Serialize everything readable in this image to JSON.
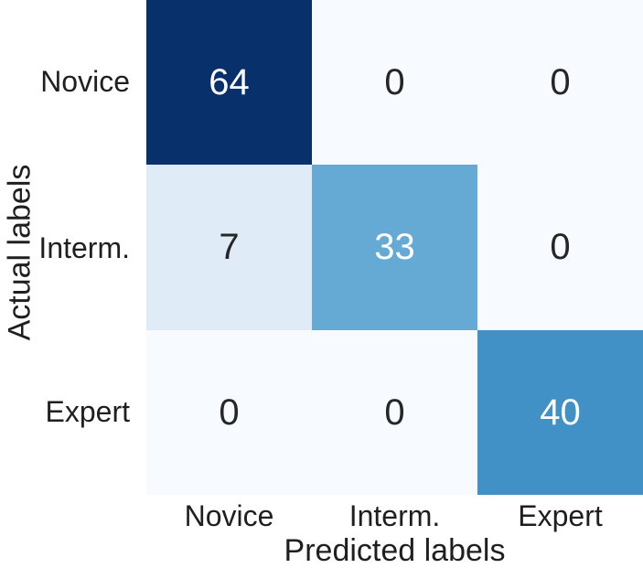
{
  "figure": {
    "background": "#ffffff",
    "text_color": "#1f1f1f"
  },
  "chart_data": {
    "type": "heatmap",
    "title": "",
    "xlabel": "Predicted labels",
    "ylabel": "Actual labels",
    "x_categories": [
      "Novice",
      "Interm.",
      "Expert"
    ],
    "y_categories": [
      "Novice",
      "Interm.",
      "Expert"
    ],
    "values": [
      [
        64,
        0,
        0
      ],
      [
        7,
        33,
        0
      ],
      [
        0,
        0,
        40
      ]
    ],
    "colormap": "Blues",
    "vmin": 0,
    "vmax": 64,
    "grid": false,
    "legend": "none",
    "cells": [
      {
        "row": "Novice",
        "col": "Novice",
        "value": "64",
        "bg": "#08306b",
        "fg": "#ffffff"
      },
      {
        "row": "Novice",
        "col": "Interm.",
        "value": "0",
        "bg": "#f7fbff",
        "fg": "#262626"
      },
      {
        "row": "Novice",
        "col": "Expert",
        "value": "0",
        "bg": "#f7fbff",
        "fg": "#262626"
      },
      {
        "row": "Interm.",
        "col": "Novice",
        "value": "7",
        "bg": "#dfebf7",
        "fg": "#262626"
      },
      {
        "row": "Interm.",
        "col": "Interm.",
        "value": "33",
        "bg": "#64aad5",
        "fg": "#ffffff"
      },
      {
        "row": "Interm.",
        "col": "Expert",
        "value": "0",
        "bg": "#f7fbff",
        "fg": "#262626"
      },
      {
        "row": "Expert",
        "col": "Novice",
        "value": "0",
        "bg": "#f7fbff",
        "fg": "#262626"
      },
      {
        "row": "Expert",
        "col": "Interm.",
        "value": "0",
        "bg": "#f7fbff",
        "fg": "#262626"
      },
      {
        "row": "Expert",
        "col": "Expert",
        "value": "40",
        "bg": "#4191c6",
        "fg": "#ffffff"
      }
    ]
  }
}
